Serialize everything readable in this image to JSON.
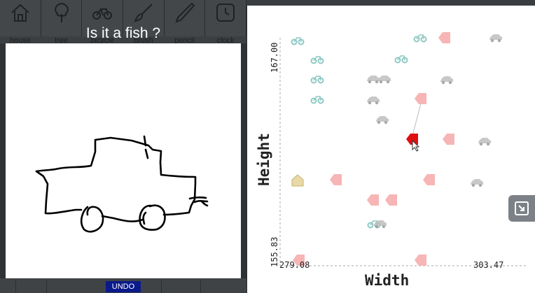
{
  "toolbar": {
    "tools": [
      {
        "label": "house",
        "icon": "house-icon"
      },
      {
        "label": "tree",
        "icon": "tree-icon"
      },
      {
        "label": "bicycle",
        "icon": "bicycle-icon"
      },
      {
        "label": "brush",
        "icon": "brush-icon"
      },
      {
        "label": "pencil",
        "icon": "pencil-icon"
      },
      {
        "label": "clock",
        "icon": "clock-icon"
      }
    ]
  },
  "prompt": {
    "question": "Is it a fish ?"
  },
  "undo_label": "UNDO",
  "plot": {
    "x_label": "Width",
    "y_label": "Height",
    "x_min": "279.08",
    "x_max": "303.47",
    "y_min": "155.83",
    "y_max": "167.00"
  },
  "expand_icon": "expand-icon",
  "colors": {
    "selected": "#e01010",
    "car": "#bfbfbf",
    "bicycle": "#8fc9c4",
    "pink": "#f7b5b5",
    "house": "#e8d9a8",
    "undo": "#0a1a8a"
  }
}
